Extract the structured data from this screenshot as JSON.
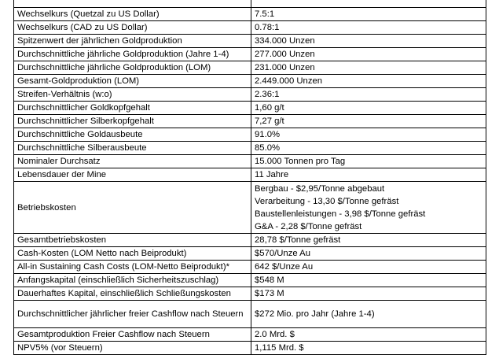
{
  "table": {
    "rows": [
      [
        "Wechselkurs (Quetzal zu US Dollar)",
        "7.5:1"
      ],
      [
        "Wechselkurs (CAD zu US Dollar)",
        "0.78:1"
      ],
      [
        "Spitzenwert der jährlichen Goldproduktion",
        "334.000 Unzen"
      ],
      [
        "Durchschnittliche jährliche Goldproduktion (Jahre 1-4)",
        "277.000 Unzen"
      ],
      [
        "Durchschnittliche jährliche Goldproduktion (LOM)",
        "231.000 Unzen"
      ],
      [
        "Gesamt-Goldproduktion (LOM)",
        "2.449.000 Unzen"
      ],
      [
        "Streifen-Verhältnis (w:o)",
        "2.36:1"
      ],
      [
        "Durchschnittlicher Goldkopfgehalt",
        "1,60 g/t"
      ],
      [
        "Durchschnittlicher Silberkopfgehalt",
        "7,27 g/t"
      ],
      [
        "Durchschnittliche Goldausbeute",
        "91.0%"
      ],
      [
        "Durchschnittliche Silberausbeute",
        "85.0%"
      ],
      [
        "Nominaler Durchsatz",
        "15.000 Tonnen pro Tag"
      ],
      [
        "Lebensdauer der Mine",
        "11 Jahre"
      ],
      [
        "Betriebskosten",
        [
          "Bergbau - $2,95/Tonne abgebaut",
          "Verarbeitung - 13,30 $/Tonne gefräst",
          "Baustellenleistungen - 3,98 $/Tonne gefräst",
          "G&A - 2,28 $/Tonne gefräst"
        ]
      ],
      [
        "Gesamtbetriebskosten",
        "28,78 $/Tonne gefräst"
      ],
      [
        "Cash-Kosten (LOM Netto nach Beiprodukt)",
        "$570/Unze Au"
      ],
      [
        "All-in Sustaining Cash Costs (LOM-Netto Beiprodukt)*",
        "642 $/Unze Au"
      ],
      [
        "Anfangskapital (einschließlich Sicherheitszuschlag)",
        "$548 M"
      ],
      [
        "Dauerhaftes Kapital, einschließlich Schließungskosten",
        "$173 M"
      ],
      [
        "Durchschnittlicher jährlicher freier Cashflow nach Steuern",
        "$272 Mio. pro Jahr (Jahre 1-4)"
      ],
      [
        "Gesamtproduktion Freier Cashflow nach Steuern",
        "2.0 Mrd. $"
      ],
      [
        "NPV5% (vor Steuern)",
        "1,115 Mrd. $"
      ]
    ]
  }
}
